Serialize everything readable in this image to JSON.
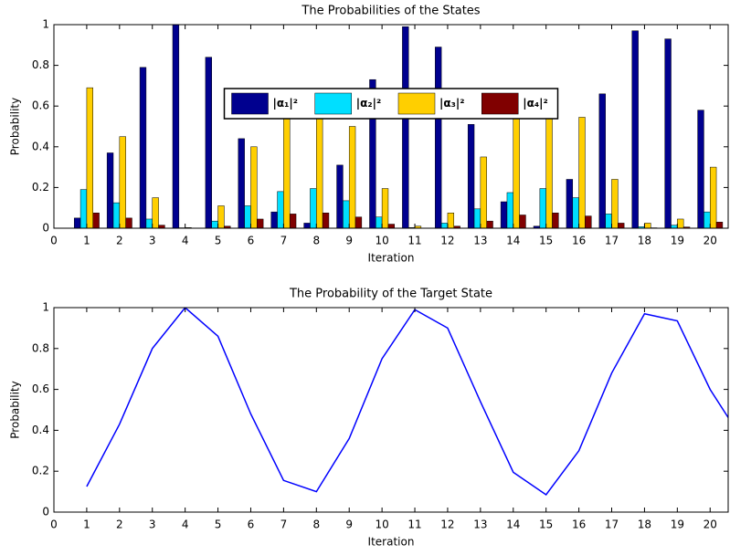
{
  "chart_data": [
    {
      "type": "bar",
      "title": "The Probabilities of the States",
      "x_label": "Iteration",
      "y_label": "Probability",
      "x": [
        1,
        2,
        3,
        4,
        5,
        6,
        7,
        8,
        9,
        10,
        11,
        12,
        13,
        14,
        15,
        16,
        17,
        18,
        19,
        20
      ],
      "series": [
        {
          "name": "|α₁|²",
          "color": "#00008f",
          "values": [
            0.05,
            0.37,
            0.79,
            1.0,
            0.84,
            0.44,
            0.08,
            0.025,
            0.31,
            0.73,
            0.99,
            0.89,
            0.51,
            0.13,
            0.01,
            0.24,
            0.66,
            0.97,
            0.93,
            0.58
          ]
        },
        {
          "name": "|α₂|²",
          "color": "#00dfff",
          "values": [
            0.19,
            0.125,
            0.045,
            0.002,
            0.035,
            0.11,
            0.18,
            0.195,
            0.135,
            0.055,
            0.003,
            0.025,
            0.095,
            0.175,
            0.195,
            0.15,
            0.07,
            0.007,
            0.015,
            0.08
          ]
        },
        {
          "name": "|α₃|²",
          "color": "#ffcf00",
          "values": [
            0.69,
            0.45,
            0.15,
            0.003,
            0.11,
            0.4,
            0.63,
            0.68,
            0.5,
            0.195,
            0.01,
            0.075,
            0.35,
            0.63,
            0.68,
            0.545,
            0.24,
            0.025,
            0.045,
            0.3
          ]
        },
        {
          "name": "|α₄|²",
          "color": "#800000",
          "values": [
            0.075,
            0.05,
            0.015,
            0.0003,
            0.01,
            0.045,
            0.07,
            0.075,
            0.055,
            0.02,
            0.001,
            0.01,
            0.035,
            0.065,
            0.075,
            0.06,
            0.025,
            0.002,
            0.006,
            0.03
          ]
        }
      ],
      "xlim": [
        0,
        20.55
      ],
      "xticks": [
        0,
        1,
        2,
        3,
        4,
        5,
        6,
        7,
        8,
        9,
        10,
        11,
        12,
        13,
        14,
        15,
        16,
        17,
        18,
        19,
        20
      ],
      "ylim": [
        0,
        1
      ],
      "yticks": [
        0,
        0.2,
        0.4,
        0.6,
        0.8,
        1
      ],
      "legend": "north",
      "grid": false
    },
    {
      "type": "line",
      "title": "The Probability of the Target State",
      "x_label": "Iteration",
      "y_label": "Probability",
      "x": [
        1,
        2,
        3,
        4,
        5,
        6,
        7,
        8,
        9,
        10,
        11,
        12,
        13,
        14,
        15,
        16,
        17,
        18,
        19,
        20,
        21
      ],
      "series": [
        {
          "color": "#0000ff",
          "values": [
            0.125,
            0.43,
            0.8,
            1.0,
            0.86,
            0.48,
            0.155,
            0.1,
            0.36,
            0.75,
            0.99,
            0.9,
            0.54,
            0.195,
            0.085,
            0.3,
            0.68,
            0.97,
            0.935,
            0.6,
            0.35
          ]
        }
      ],
      "xlim": [
        0,
        20.55
      ],
      "xticks": [
        0,
        1,
        2,
        3,
        4,
        5,
        6,
        7,
        8,
        9,
        10,
        11,
        12,
        13,
        14,
        15,
        16,
        17,
        18,
        19,
        20
      ],
      "ylim": [
        0,
        1
      ],
      "yticks": [
        0,
        0.2,
        0.4,
        0.6,
        0.8,
        1
      ],
      "grid": false
    }
  ]
}
